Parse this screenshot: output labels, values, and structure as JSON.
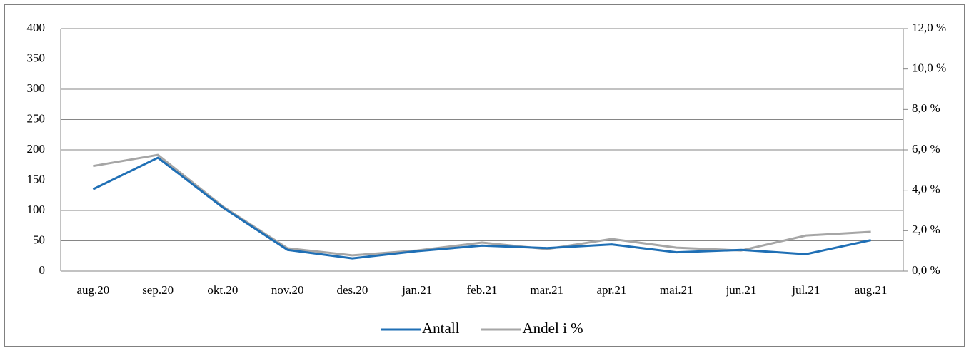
{
  "chart_data": {
    "type": "line",
    "categories": [
      "aug.20",
      "sep.20",
      "okt.20",
      "nov.20",
      "des.20",
      "jan.21",
      "feb.21",
      "mar.21",
      "apr.21",
      "mai.21",
      "jun.21",
      "jul.21",
      "aug.21"
    ],
    "series": [
      {
        "name": "Antall",
        "color": "#1f6fb5",
        "values": [
          135,
          187,
          105,
          35,
          21,
          33,
          42,
          38,
          44,
          31,
          35,
          28,
          51
        ]
      },
      {
        "name": "Andel i %",
        "color": "#a6a6a6",
        "axis": "y2",
        "values": [
          5.2,
          5.75,
          3.2,
          1.13,
          0.78,
          1.02,
          1.41,
          1.09,
          1.59,
          1.16,
          1.02,
          1.76,
          1.94
        ]
      }
    ],
    "ylim": [
      0,
      400
    ],
    "yticks": [
      0,
      50,
      100,
      150,
      200,
      250,
      300,
      350,
      400
    ],
    "y2lim": [
      0,
      12
    ],
    "y2ticks": [
      {
        "value": 0,
        "label": "0,0 %"
      },
      {
        "value": 2,
        "label": "2,0 %"
      },
      {
        "value": 4,
        "label": "4,0 %"
      },
      {
        "value": 6,
        "label": "6,0 %"
      },
      {
        "value": 8,
        "label": "8,0 %"
      },
      {
        "value": 10,
        "label": "10,0 %"
      },
      {
        "value": 12,
        "label": "12,0 %"
      }
    ],
    "grid": true,
    "legend": "bottom"
  }
}
